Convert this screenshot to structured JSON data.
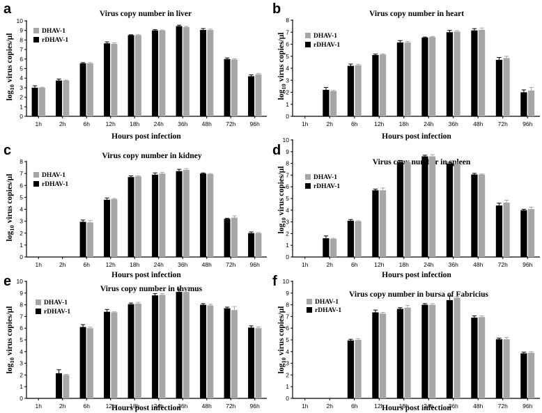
{
  "colors": {
    "dhav": "#a6a6a6",
    "rdhav": "#000000",
    "axis": "#000000"
  },
  "legend": {
    "dhav_label": "DHAV-1",
    "rdhav_label": "rDHAV-1"
  },
  "chart_data": [
    {
      "panel": "a",
      "type": "bar",
      "title": "Virus copy number in liver",
      "xlabel": "Hours post infection",
      "ylabel_main": "log",
      "ylabel_sub": "10",
      "ylabel_rest": " virus copies/µl",
      "ylim": [
        0,
        10
      ],
      "yticks": [
        0,
        1,
        2,
        3,
        4,
        5,
        6,
        7,
        8,
        9,
        10
      ],
      "categories": [
        "1h",
        "2h",
        "6h",
        "12h",
        "18h",
        "24h",
        "36h",
        "48h",
        "72h",
        "96h"
      ],
      "series": [
        {
          "name": "rDHAV-1",
          "values": [
            3.0,
            3.75,
            5.55,
            7.65,
            8.5,
            9.0,
            9.45,
            9.05,
            6.0,
            4.2
          ],
          "errors": [
            0.2,
            0.15,
            0.08,
            0.15,
            0.05,
            0.08,
            0.1,
            0.15,
            0.12,
            0.15
          ]
        },
        {
          "name": "DHAV-1",
          "values": [
            3.0,
            3.75,
            5.55,
            7.6,
            8.5,
            9.0,
            9.35,
            9.05,
            5.95,
            4.4
          ],
          "errors": [
            0.05,
            0.05,
            0.08,
            0.1,
            0.05,
            0.05,
            0.08,
            0.1,
            0.08,
            0.1
          ]
        }
      ]
    },
    {
      "panel": "b",
      "type": "bar",
      "title": "Virus copy number in heart",
      "xlabel": "Hours post infection",
      "ylabel_main": "log",
      "ylabel_sub": "10",
      "ylabel_rest": " virus copies/µl",
      "ylim": [
        0,
        8
      ],
      "yticks": [
        0,
        1,
        2,
        3,
        4,
        5,
        6,
        7,
        8
      ],
      "categories": [
        "1h",
        "2h",
        "6h",
        "12h",
        "18h",
        "24h",
        "36h",
        "48h",
        "72h",
        "96h"
      ],
      "series": [
        {
          "name": "rDHAV-1",
          "values": [
            0,
            2.2,
            4.2,
            5.1,
            6.15,
            6.55,
            7.0,
            7.15,
            4.7,
            2.0
          ],
          "errors": [
            0,
            0.2,
            0.15,
            0.08,
            0.15,
            0.05,
            0.15,
            0.15,
            0.2,
            0.2
          ]
        },
        {
          "name": "DHAV-1",
          "values": [
            0,
            2.1,
            4.25,
            5.15,
            6.15,
            6.6,
            7.05,
            7.2,
            4.85,
            2.15
          ],
          "errors": [
            0,
            0.05,
            0.08,
            0.05,
            0.08,
            0.05,
            0.08,
            0.15,
            0.15,
            0.25
          ]
        }
      ]
    },
    {
      "panel": "c",
      "type": "bar",
      "title": "Virus copy number in kidney",
      "xlabel": "Hours post infection",
      "ylabel_main": "log",
      "ylabel_sub": "10",
      "ylabel_rest": " virus copies/µl",
      "ylim": [
        0,
        8
      ],
      "yticks": [
        0,
        1,
        2,
        3,
        4,
        5,
        6,
        7,
        8
      ],
      "categories": [
        "1h",
        "2h",
        "6h",
        "12h",
        "18h",
        "24h",
        "36h",
        "48h",
        "72h",
        "96h"
      ],
      "series": [
        {
          "name": "rDHAV-1",
          "values": [
            0,
            0,
            2.95,
            4.8,
            6.7,
            6.9,
            7.2,
            7.0,
            3.2,
            2.0
          ],
          "errors": [
            0,
            0,
            0.15,
            0.15,
            0.1,
            0.15,
            0.15,
            0.05,
            0.05,
            0.1
          ]
        },
        {
          "name": "DHAV-1",
          "values": [
            0,
            0,
            2.9,
            4.85,
            6.75,
            7.0,
            7.3,
            6.95,
            3.3,
            2.0
          ],
          "errors": [
            0,
            0,
            0.15,
            0.05,
            0.05,
            0.1,
            0.1,
            0.05,
            0.15,
            0.05
          ]
        }
      ]
    },
    {
      "panel": "d",
      "type": "bar",
      "title": "Virus copy number in spleen",
      "xlabel": "Hours post infection",
      "ylabel_main": "log",
      "ylabel_sub": "10",
      "ylabel_rest": " virus copies/µl",
      "ylim": [
        0,
        10
      ],
      "yticks": [
        0,
        1,
        2,
        3,
        4,
        5,
        6,
        7,
        8,
        9,
        10
      ],
      "categories": [
        "1h",
        "2h",
        "6h",
        "12h",
        "18h",
        "24h",
        "36h",
        "48h",
        "72h",
        "96h"
      ],
      "series": [
        {
          "name": "rDHAV-1",
          "values": [
            0,
            1.6,
            3.1,
            5.7,
            8.1,
            8.6,
            8.0,
            7.05,
            4.4,
            4.0
          ],
          "errors": [
            0,
            0.2,
            0.1,
            0.1,
            0.15,
            0.1,
            0.1,
            0.1,
            0.2,
            0.08
          ]
        },
        {
          "name": "DHAV-1",
          "values": [
            0,
            1.55,
            3.05,
            5.7,
            8.1,
            8.6,
            7.95,
            7.05,
            4.65,
            4.1
          ],
          "errors": [
            0,
            0.05,
            0.05,
            0.2,
            0.05,
            0.15,
            0.1,
            0.05,
            0.2,
            0.15
          ]
        }
      ]
    },
    {
      "panel": "e",
      "type": "bar",
      "title": "Virus copy number in thymus",
      "xlabel": "Hours post infection",
      "ylabel_main": "log",
      "ylabel_sub": "10",
      "ylabel_rest": " virus copies/µl",
      "ylim": [
        0,
        10
      ],
      "yticks": [
        0,
        1,
        2,
        3,
        4,
        5,
        6,
        7,
        8,
        9,
        10
      ],
      "categories": [
        "1h",
        "2h",
        "6h",
        "12h",
        "18h",
        "24h",
        "36h",
        "48h",
        "72h",
        "96h"
      ],
      "series": [
        {
          "name": "rDHAV-1",
          "values": [
            0,
            2.15,
            6.1,
            7.4,
            8.05,
            8.8,
            9.1,
            8.0,
            7.7,
            6.05
          ],
          "errors": [
            0,
            0.3,
            0.2,
            0.2,
            0.1,
            0.15,
            0.25,
            0.1,
            0.1,
            0.15
          ]
        },
        {
          "name": "DHAV-1",
          "values": [
            0,
            2.0,
            6.0,
            7.35,
            8.1,
            8.85,
            9.1,
            7.95,
            7.55,
            6.0
          ],
          "errors": [
            0,
            0.05,
            0.1,
            0.05,
            0.1,
            0.1,
            0.15,
            0.1,
            0.3,
            0.1
          ]
        }
      ]
    },
    {
      "panel": "f",
      "type": "bar",
      "title": "Virus copy number in bursa of Fabricius",
      "xlabel": "Hours post infection",
      "ylabel_main": "log",
      "ylabel_sub": "10",
      "ylabel_rest": " virus copies/µl",
      "ylim": [
        0,
        10
      ],
      "yticks": [
        0,
        1,
        2,
        3,
        4,
        5,
        6,
        7,
        8,
        9,
        10
      ],
      "categories": [
        "1h",
        "2h",
        "6h",
        "12h",
        "18h",
        "24h",
        "36h",
        "48h",
        "72h",
        "96h"
      ],
      "series": [
        {
          "name": "rDHAV-1",
          "values": [
            0,
            0,
            4.95,
            7.35,
            7.65,
            8.0,
            8.4,
            6.9,
            5.05,
            3.85
          ],
          "errors": [
            0,
            0,
            0.1,
            0.2,
            0.1,
            0.1,
            0.35,
            0.15,
            0.1,
            0.1
          ]
        },
        {
          "name": "DHAV-1",
          "values": [
            0,
            0,
            5.0,
            7.25,
            7.75,
            8.0,
            8.6,
            6.95,
            5.05,
            3.9
          ],
          "errors": [
            0,
            0,
            0.1,
            0.1,
            0.2,
            0.1,
            0.1,
            0.1,
            0.15,
            0.1
          ]
        }
      ]
    }
  ]
}
